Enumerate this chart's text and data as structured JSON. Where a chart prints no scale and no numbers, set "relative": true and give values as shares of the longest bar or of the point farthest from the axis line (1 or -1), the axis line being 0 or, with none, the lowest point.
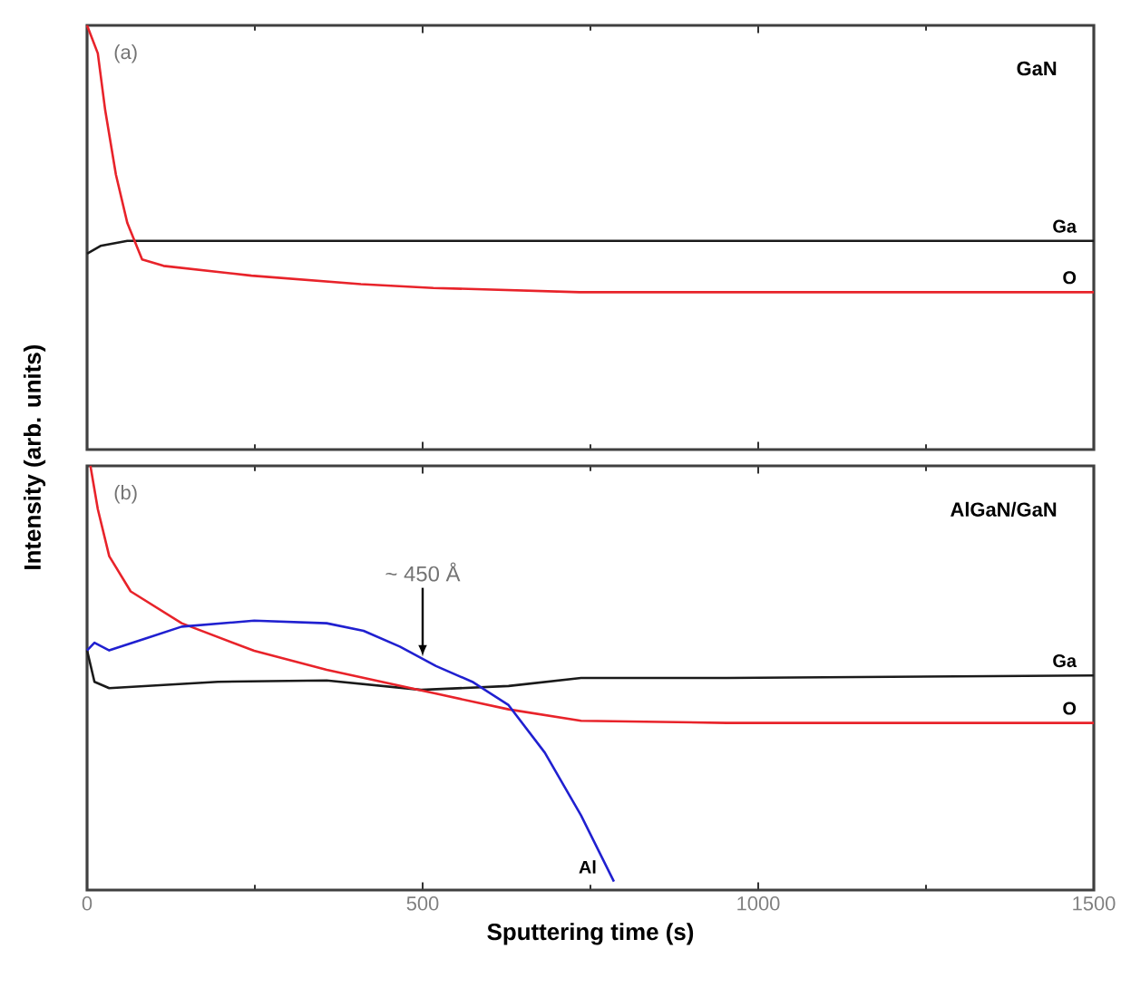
{
  "chart_data": [
    {
      "type": "line",
      "relative": true,
      "xlim": [
        0,
        1500
      ],
      "xticks": [
        0,
        500,
        1000,
        1500
      ],
      "tick_labels": false,
      "annotations": [
        "(a)",
        "GaN"
      ],
      "series": [
        {
          "name": "Ga",
          "color": "#1a1a1a",
          "x": [
            0,
            20,
            60,
            300,
            600,
            900,
            1200,
            1500
          ],
          "values": [
            0.462,
            0.48,
            0.492,
            0.492,
            0.492,
            0.492,
            0.492,
            0.492
          ]
        },
        {
          "name": "O",
          "color": "#e8232a",
          "x": [
            0,
            16,
            27,
            43,
            60,
            82,
            114,
            245,
            408,
            516,
            734,
            951,
            1169,
            1500
          ],
          "values": [
            1,
            0.934,
            0.8,
            0.648,
            0.534,
            0.448,
            0.433,
            0.41,
            0.39,
            0.381,
            0.371,
            0.371,
            0.371,
            0.371
          ]
        }
      ]
    },
    {
      "type": "line",
      "relative": true,
      "xlim": [
        0,
        1500
      ],
      "xticks": [
        0,
        500,
        1000,
        1500
      ],
      "tick_labels": "x",
      "xlabel": "Sputtering time (s)",
      "ylabel": "Intensity (arb. units)",
      "annotations": [
        "(b)",
        "AlGaN/GaN",
        {
          "text": "~ 450 Å",
          "x": 500,
          "y": 0.55
        }
      ],
      "series": [
        {
          "name": "Ga",
          "color": "#1a1a1a",
          "x": [
            0,
            11,
            33,
            195,
            357,
            498,
            628,
            736,
            953,
            1500
          ],
          "values": [
            0.565,
            0.491,
            0.476,
            0.491,
            0.494,
            0.472,
            0.481,
            0.5,
            0.5,
            0.506
          ]
        },
        {
          "name": "O",
          "color": "#e8232a",
          "x": [
            5,
            16,
            33,
            65,
            141,
            249,
            357,
            520,
            628,
            736,
            953,
            1500
          ],
          "values": [
            1,
            0.898,
            0.787,
            0.704,
            0.629,
            0.564,
            0.519,
            0.463,
            0.426,
            0.399,
            0.394,
            0.394
          ]
        },
        {
          "name": "Al",
          "color": "#2020d0",
          "x": [
            0,
            11,
            33,
            87,
            141,
            249,
            357,
            412,
            466,
            520,
            574,
            628,
            682,
            736,
            785
          ],
          "values": [
            0.565,
            0.583,
            0.565,
            0.593,
            0.621,
            0.635,
            0.629,
            0.611,
            0.574,
            0.528,
            0.491,
            0.436,
            0.324,
            0.176,
            0.02
          ]
        }
      ]
    }
  ]
}
